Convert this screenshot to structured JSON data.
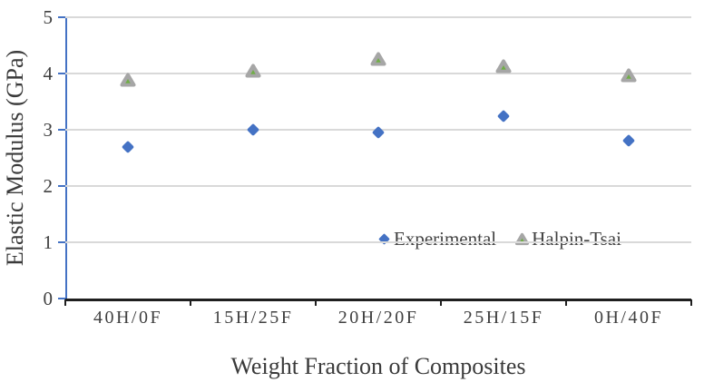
{
  "chart_data": {
    "type": "scatter",
    "title": "",
    "xlabel": "Weight Fraction of Composites",
    "ylabel": "Elastic Modulus (GPa)",
    "categories": [
      "40H/0F",
      "15H/25F",
      "20H/20F",
      "25H/15F",
      "0H/40F"
    ],
    "series": [
      {
        "name": "Experimental",
        "marker": "diamond",
        "color": "#4472c4",
        "values": [
          2.7,
          3.0,
          2.95,
          3.25,
          2.8
        ]
      },
      {
        "name": "Halpin-Tsai",
        "marker": "triangle",
        "color": "#a6a6a6",
        "inner_color": "#70ad47",
        "values": [
          3.9,
          4.06,
          4.28,
          4.14,
          3.98
        ]
      }
    ],
    "ylim": [
      0,
      5
    ],
    "yticks": [
      0,
      1,
      2,
      3,
      4,
      5
    ],
    "grid": "horizontal",
    "legend_position": "inside-lower-right"
  },
  "colors": {
    "y_axis": "#4472c4",
    "x_axis": "#1f1f1f",
    "gridline": "#d9d9d9",
    "text": "#404040",
    "background": "#ffffff"
  }
}
